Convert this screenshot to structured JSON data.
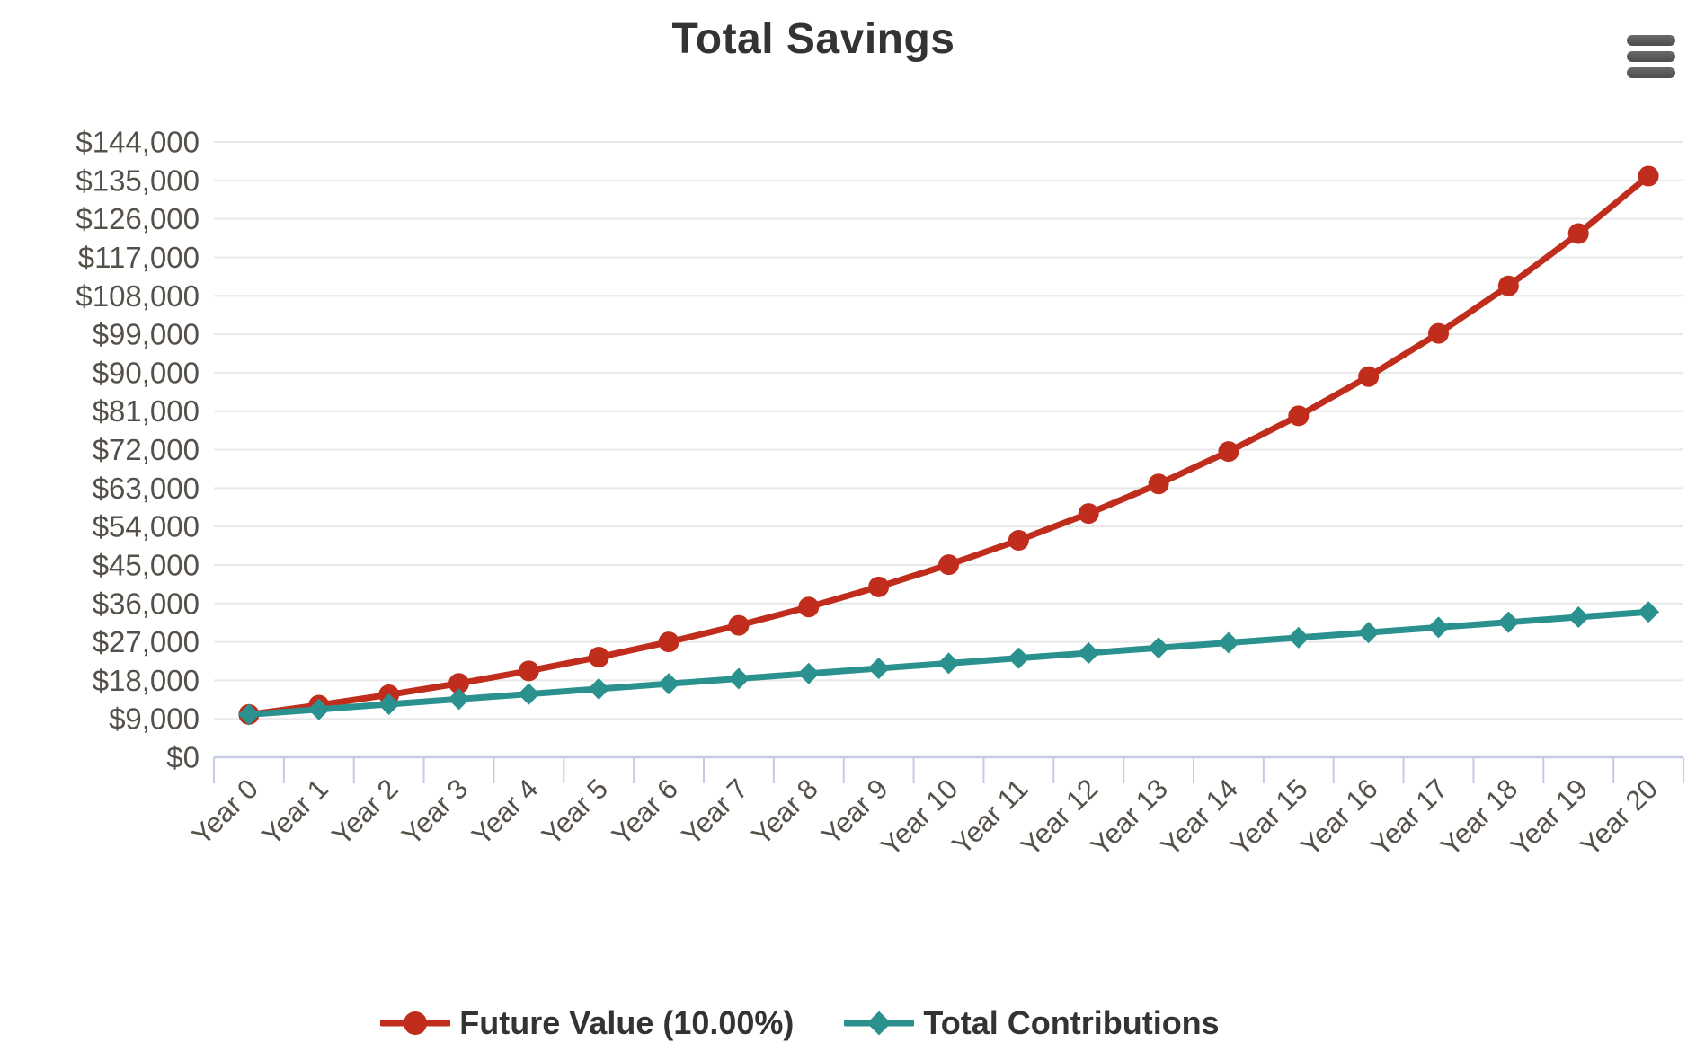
{
  "chart_data": {
    "type": "line",
    "title": "Total Savings",
    "xlabel": "",
    "ylabel": "",
    "categories": [
      "Year 0",
      "Year 1",
      "Year 2",
      "Year 3",
      "Year 4",
      "Year 5",
      "Year 6",
      "Year 7",
      "Year 8",
      "Year 9",
      "Year 10",
      "Year 11",
      "Year 12",
      "Year 13",
      "Year 14",
      "Year 15",
      "Year 16",
      "Year 17",
      "Year 18",
      "Year 19",
      "Year 20"
    ],
    "series": [
      {
        "name": "Future Value (10.00%)",
        "color": "#c02d1c",
        "marker": "circle",
        "values": [
          10000,
          12200,
          14620,
          17282,
          20210,
          23431,
          26974,
          30872,
          35159,
          39875,
          45062,
          50769,
          57045,
          63950,
          71545,
          79899,
          89089,
          99198,
          110318,
          122550,
          136005
        ]
      },
      {
        "name": "Total Contributions",
        "color": "#2a918e",
        "marker": "diamond",
        "values": [
          10000,
          11200,
          12400,
          13600,
          14800,
          16000,
          17200,
          18400,
          19600,
          20800,
          22000,
          23200,
          24400,
          25600,
          26800,
          28000,
          29200,
          30400,
          31600,
          32800,
          34000
        ]
      }
    ],
    "ylim": [
      0,
      144000
    ],
    "y_ticks": {
      "values": [
        0,
        9000,
        18000,
        27000,
        36000,
        45000,
        54000,
        63000,
        72000,
        81000,
        90000,
        99000,
        108000,
        117000,
        126000,
        135000,
        144000
      ],
      "labels": [
        "$0",
        "$9,000",
        "$18,000",
        "$27,000",
        "$36,000",
        "$45,000",
        "$54,000",
        "$63,000",
        "$72,000",
        "$81,000",
        "$90,000",
        "$99,000",
        "$108,000",
        "$117,000",
        "$126,000",
        "$135,000",
        "$144,000"
      ]
    },
    "grid": true,
    "x_label_rotation": -45,
    "legend_position": "bottom"
  },
  "toolbar": {
    "export_menu_icon": "hamburger-menu-icon"
  },
  "colors": {
    "grid_line": "#e8e8e8",
    "axis_line": "#c5cbe4",
    "axis_label": "#55504a",
    "title_text": "#333333",
    "legend_text": "#333333",
    "menu_icon": "#565656"
  }
}
